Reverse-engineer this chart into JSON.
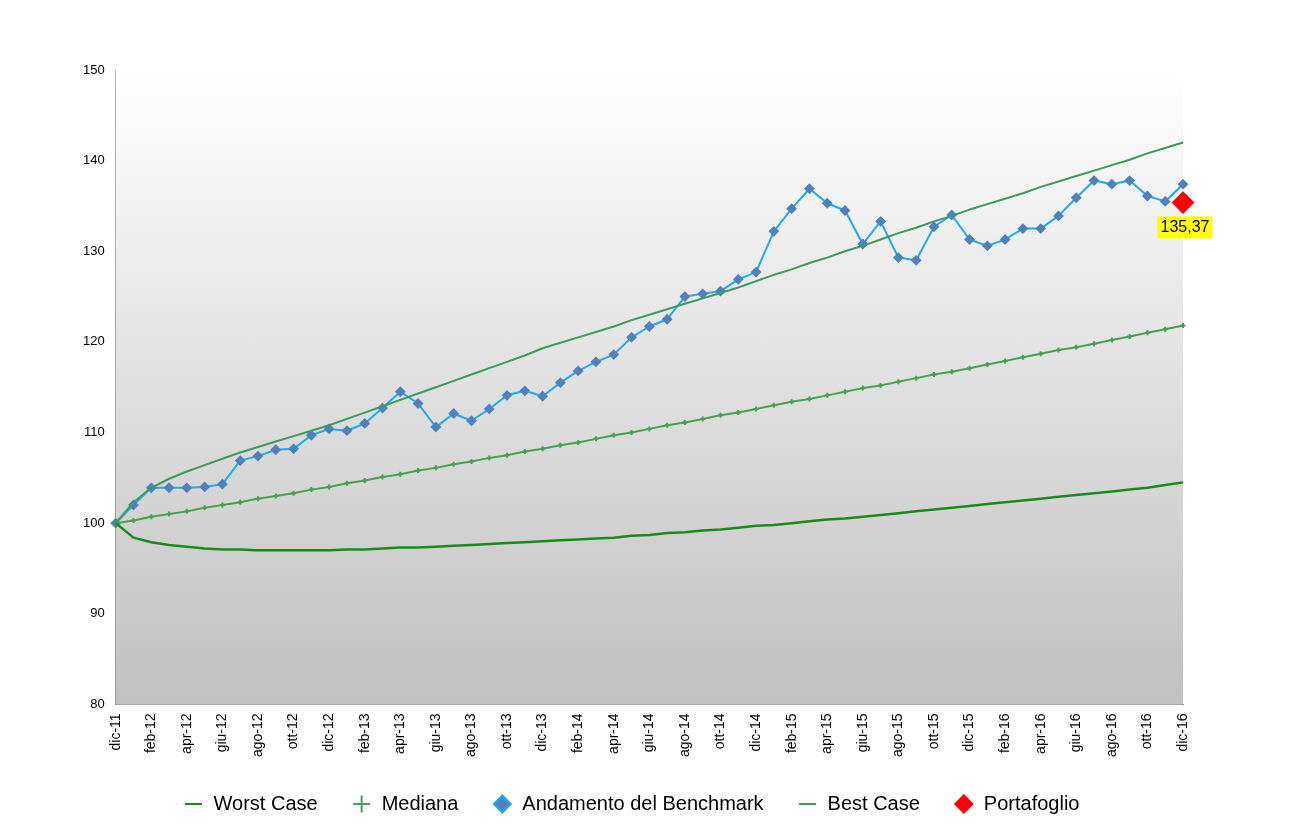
{
  "chart_data": {
    "type": "line",
    "categories": [
      "dic-11",
      null,
      "feb-12",
      null,
      "apr-12",
      null,
      "giu-12",
      null,
      "ago-12",
      null,
      "ott-12",
      null,
      "dic-12",
      null,
      "feb-13",
      null,
      "apr-13",
      null,
      "giu-13",
      null,
      "ago-13",
      null,
      "ott-13",
      null,
      "dic-13",
      null,
      "feb-14",
      null,
      "apr-14",
      null,
      "giu-14",
      null,
      "ago-14",
      null,
      "ott-14",
      null,
      "dic-14",
      null,
      "feb-15",
      null,
      "apr-15",
      null,
      "giu-15",
      null,
      "ago-15",
      null,
      "ott-15",
      null,
      "dic-15",
      null,
      "feb-16",
      null,
      "apr-16",
      null,
      "giu-16",
      null,
      "ago-16",
      null,
      "ott-16",
      null,
      "dic-16"
    ],
    "ylim": [
      80,
      150
    ],
    "yticks": [
      80,
      90,
      100,
      110,
      120,
      130,
      140,
      150
    ],
    "grid": false,
    "legend": "bottom",
    "line_style": "solid",
    "series": [
      {
        "name": "Worst Case",
        "color": "#168c16",
        "marker": "none",
        "values": [
          100,
          98.4,
          97.9,
          97.6,
          97.4,
          97.2,
          97.1,
          97.1,
          97.0,
          97.0,
          97.0,
          97.0,
          97.0,
          97.1,
          97.1,
          97.2,
          97.3,
          97.3,
          97.4,
          97.5,
          97.6,
          97.7,
          97.8,
          97.9,
          98.0,
          98.1,
          98.2,
          98.3,
          98.4,
          98.6,
          98.7,
          98.9,
          99.0,
          99.2,
          99.3,
          99.5,
          99.7,
          99.8,
          100.0,
          100.2,
          100.4,
          100.5,
          100.7,
          100.9,
          101.1,
          101.3,
          101.5,
          101.7,
          101.9,
          102.1,
          102.3,
          102.5,
          102.7,
          102.9,
          103.1,
          103.3,
          103.5,
          103.7,
          103.9,
          104.2,
          104.5
        ]
      },
      {
        "name": "Mediana",
        "color": "#45a055",
        "marker": "cross",
        "values": [
          100,
          100.3,
          100.7,
          101.0,
          101.3,
          101.7,
          102.0,
          102.3,
          102.7,
          103.0,
          103.3,
          103.7,
          104.0,
          104.4,
          104.7,
          105.1,
          105.4,
          105.8,
          106.1,
          106.5,
          106.8,
          107.2,
          107.5,
          107.9,
          108.2,
          108.6,
          108.9,
          109.3,
          109.7,
          110.0,
          110.4,
          110.8,
          111.1,
          111.5,
          111.9,
          112.2,
          112.6,
          113.0,
          113.4,
          113.7,
          114.1,
          114.5,
          114.9,
          115.2,
          115.6,
          116.0,
          116.4,
          116.7,
          117.1,
          117.5,
          117.9,
          118.3,
          118.7,
          119.1,
          119.4,
          119.8,
          120.2,
          120.6,
          121.0,
          121.4,
          121.8
        ]
      },
      {
        "name": "Andamento del Benchmark",
        "color": "#1aaeea",
        "marker": "diamond",
        "values": [
          100.0,
          102.0,
          103.9,
          103.9,
          103.9,
          104.0,
          104.3,
          106.9,
          107.4,
          108.1,
          108.2,
          109.7,
          110.4,
          110.2,
          111.0,
          112.7,
          114.5,
          113.2,
          110.6,
          112.1,
          111.3,
          112.6,
          114.1,
          114.6,
          114.0,
          115.5,
          116.8,
          117.8,
          118.6,
          120.5,
          121.7,
          122.5,
          125.0,
          125.3,
          125.6,
          126.9,
          127.7,
          132.2,
          134.7,
          136.9,
          135.3,
          134.5,
          130.8,
          133.3,
          129.3,
          129.0,
          132.7,
          134.0,
          131.3,
          130.6,
          131.3,
          132.5,
          132.5,
          133.9,
          135.9,
          137.8,
          137.4,
          137.8,
          136.1,
          135.5,
          137.4
        ]
      },
      {
        "name": "Best Case",
        "color": "#3c9a5c",
        "marker": "none",
        "values": [
          100,
          102.3,
          103.9,
          104.9,
          105.7,
          106.4,
          107.1,
          107.8,
          108.4,
          109.0,
          109.6,
          110.2,
          110.8,
          111.5,
          112.2,
          112.9,
          113.6,
          114.3,
          115.0,
          115.7,
          116.4,
          117.1,
          117.8,
          118.5,
          119.3,
          119.9,
          120.5,
          121.1,
          121.7,
          122.4,
          123.0,
          123.6,
          124.2,
          124.8,
          125.4,
          126.0,
          126.7,
          127.4,
          128.0,
          128.7,
          129.3,
          130.0,
          130.6,
          131.3,
          132.0,
          132.6,
          133.3,
          133.9,
          134.6,
          135.2,
          135.8,
          136.4,
          137.1,
          137.7,
          138.3,
          138.9,
          139.5,
          140.1,
          140.8,
          141.4,
          142.0
        ]
      },
      {
        "name": "Portafoglio",
        "type": "scatter",
        "color": "#ff0000",
        "marker": "diamond",
        "values": [
          null,
          null,
          null,
          null,
          null,
          null,
          null,
          null,
          null,
          null,
          null,
          null,
          null,
          null,
          null,
          null,
          null,
          null,
          null,
          null,
          null,
          null,
          null,
          null,
          null,
          null,
          null,
          null,
          null,
          null,
          null,
          null,
          null,
          null,
          null,
          null,
          null,
          null,
          null,
          null,
          null,
          null,
          null,
          null,
          null,
          null,
          null,
          null,
          null,
          null,
          null,
          null,
          null,
          null,
          null,
          null,
          null,
          null,
          null,
          null,
          135.37
        ],
        "value_labels": [
          null,
          null,
          null,
          null,
          null,
          null,
          null,
          null,
          null,
          null,
          null,
          null,
          null,
          null,
          null,
          null,
          null,
          null,
          null,
          null,
          null,
          null,
          null,
          null,
          null,
          null,
          null,
          null,
          null,
          null,
          null,
          null,
          null,
          null,
          null,
          null,
          null,
          null,
          null,
          null,
          null,
          null,
          null,
          null,
          null,
          null,
          null,
          null,
          null,
          null,
          null,
          null,
          null,
          null,
          null,
          null,
          null,
          null,
          null,
          null,
          "135,37"
        ]
      }
    ]
  }
}
